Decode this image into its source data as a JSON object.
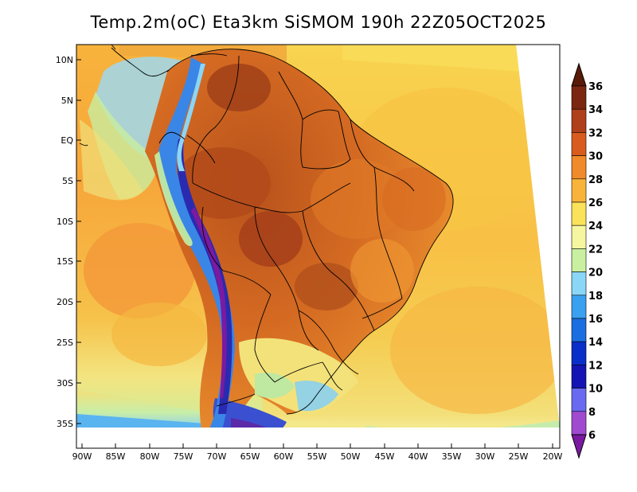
{
  "title": "Temp.2m(oC) Eta3km SiSMOM 190h 22Z05OCT2025",
  "lat_labels": [
    "10N",
    "5N",
    "EQ",
    "5S",
    "10S",
    "15S",
    "20S",
    "25S",
    "30S",
    "35S"
  ],
  "lon_labels": [
    "90W",
    "85W",
    "80W",
    "75W",
    "70W",
    "65W",
    "60W",
    "55W",
    "50W",
    "45W",
    "40W",
    "35W",
    "30W",
    "25W",
    "20W"
  ],
  "colorbar": {
    "levels": [
      "6",
      "8",
      "10",
      "12",
      "14",
      "16",
      "18",
      "20",
      "22",
      "24",
      "26",
      "28",
      "30",
      "32",
      "34",
      "36"
    ],
    "colors": [
      "#7a1aa0",
      "#a04ad0",
      "#6a6af0",
      "#1414b4",
      "#0a2ec8",
      "#1a6ee0",
      "#3aa0f0",
      "#8ad6f6",
      "#c8f0a0",
      "#f6f6a0",
      "#fae25a",
      "#f8b43a",
      "#f08a2a",
      "#d85c1e",
      "#b0401a",
      "#7a2610",
      "#5a1a08"
    ]
  },
  "colors": {
    "ocean_warm": "#f9c442",
    "ocean_mid": "#f5a43a",
    "ocean_cool": "#f3e77a",
    "ocean_cold": "#a6dff0",
    "land_hot": "#d0621e",
    "land_hotter": "#a6451a",
    "andes_cold": "#3a5ed8",
    "andes_coldest": "#7a2aa0",
    "border": "#000000"
  }
}
